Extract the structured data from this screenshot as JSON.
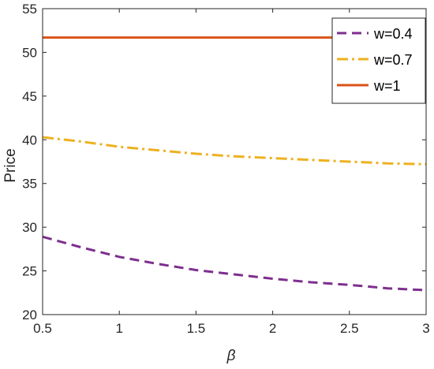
{
  "chart_data": {
    "type": "line",
    "xlabel": "β",
    "ylabel": "Price",
    "xlim": [
      0.5,
      3
    ],
    "ylim": [
      20,
      55
    ],
    "xticks": [
      0.5,
      1,
      1.5,
      2,
      2.5,
      3
    ],
    "yticks": [
      20,
      25,
      30,
      35,
      40,
      45,
      50,
      55
    ],
    "xtick_labels": [
      "0.5",
      "1",
      "1.5",
      "2",
      "2.5",
      "3"
    ],
    "ytick_labels": [
      "20",
      "25",
      "30",
      "35",
      "40",
      "45",
      "50",
      "55"
    ],
    "grid": false,
    "legend_position": "top-right",
    "x": [
      0.5,
      0.75,
      1,
      1.25,
      1.5,
      1.75,
      2,
      2.25,
      2.5,
      2.75,
      3
    ],
    "series": [
      {
        "name": "w=0.4",
        "color": "#7E2F8E",
        "dash": "dashed",
        "values": [
          28.9,
          27.7,
          26.6,
          25.8,
          25.1,
          24.6,
          24.1,
          23.7,
          23.4,
          23.0,
          22.8
        ]
      },
      {
        "name": "w=0.7",
        "color": "#EDB120",
        "dash": "dashdot",
        "values": [
          40.3,
          39.8,
          39.2,
          38.8,
          38.4,
          38.1,
          37.9,
          37.7,
          37.5,
          37.3,
          37.2
        ]
      },
      {
        "name": "w=1",
        "color": "#D95319",
        "dash": "solid",
        "values": [
          51.7,
          51.7,
          51.7,
          51.7,
          51.7,
          51.7,
          51.7,
          51.7,
          51.7,
          51.7,
          51.7
        ]
      }
    ]
  }
}
